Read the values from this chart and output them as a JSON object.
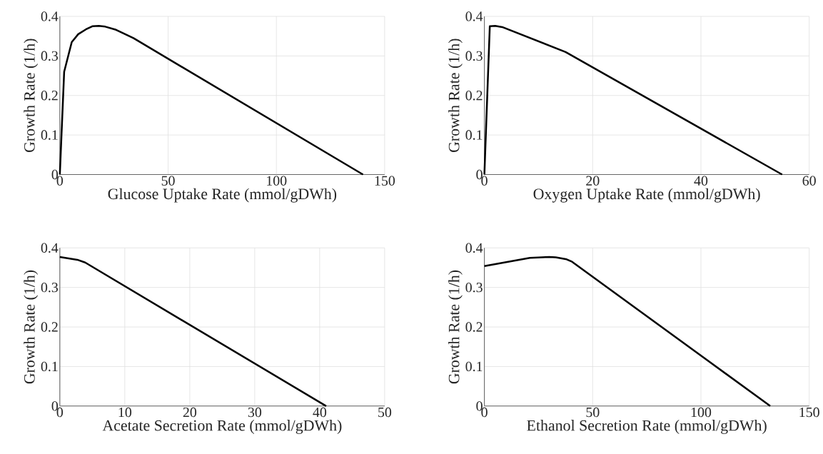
{
  "chart_data": [
    {
      "type": "line",
      "xlabel": "Glucose Uptake Rate (mmol/gDWh)",
      "ylabel": "Growth Rate (1/h)",
      "x": [
        0,
        2,
        5.5,
        8.5,
        12,
        15,
        18,
        21,
        26,
        34,
        140
      ],
      "values": [
        0,
        0.26,
        0.335,
        0.355,
        0.367,
        0.375,
        0.376,
        0.374,
        0.366,
        0.345,
        0
      ],
      "color": "#000000",
      "xlim": [
        0,
        150
      ],
      "ylim": [
        0,
        0.4
      ],
      "xticks": [
        0,
        50,
        100,
        150
      ],
      "yticks": [
        0,
        0.1,
        0.2,
        0.3,
        0.4
      ],
      "grid": true
    },
    {
      "type": "line",
      "xlabel": "Oxygen Uptake Rate (mmol/gDWh)",
      "ylabel": "Growth Rate (1/h)",
      "x": [
        0,
        1,
        2,
        3.3,
        15,
        55
      ],
      "values": [
        0,
        0.375,
        0.376,
        0.373,
        0.31,
        0
      ],
      "color": "#000000",
      "xlim": [
        0,
        60
      ],
      "ylim": [
        0,
        0.4
      ],
      "xticks": [
        0,
        20,
        40,
        60
      ],
      "yticks": [
        0,
        0.1,
        0.2,
        0.3,
        0.4
      ],
      "grid": true
    },
    {
      "type": "line",
      "xlabel": "Acetate Secretion Rate (mmol/gDWh)",
      "ylabel": "Growth Rate (1/h)",
      "x": [
        0,
        2.7,
        3.9,
        41
      ],
      "values": [
        0.377,
        0.37,
        0.363,
        0
      ],
      "color": "#000000",
      "xlim": [
        0,
        50
      ],
      "ylim": [
        0,
        0.4
      ],
      "xticks": [
        0,
        10,
        20,
        30,
        40,
        50
      ],
      "yticks": [
        0,
        0.1,
        0.2,
        0.3,
        0.4
      ],
      "grid": true
    },
    {
      "type": "line",
      "xlabel": "Ethanol Secretion Rate (mmol/gDWh)",
      "ylabel": "Growth Rate (1/h)",
      "x": [
        0,
        21,
        30,
        33,
        38,
        40.5,
        132
      ],
      "values": [
        0.354,
        0.375,
        0.377,
        0.376,
        0.371,
        0.365,
        0
      ],
      "color": "#000000",
      "xlim": [
        0,
        150
      ],
      "ylim": [
        0,
        0.4
      ],
      "xticks": [
        0,
        50,
        100,
        150
      ],
      "yticks": [
        0,
        0.1,
        0.2,
        0.3,
        0.4
      ],
      "grid": true
    }
  ]
}
